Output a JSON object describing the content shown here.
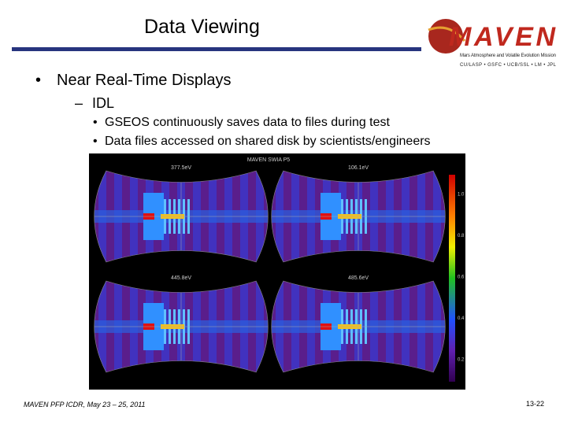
{
  "header": {
    "title": "Data Viewing"
  },
  "logo": {
    "name": "MAVEN",
    "tagline": "Mars Atmosphere and Volatile Evolution Mission",
    "partners": "CU/LASP • GSFC • UCB/SSL • LM • JPL"
  },
  "bullets": [
    {
      "text": "Near Real-Time Displays",
      "sub": [
        {
          "text": "IDL",
          "sub": [
            "GSEOS continuously saves data to files during test",
            "Data files accessed on shared disk by scientists/engineers"
          ]
        }
      ]
    }
  ],
  "figure": {
    "title": "MAVEN SWIA P5",
    "panels": [
      "377.5eV",
      "106.1eV",
      "445.8eV",
      "485.6eV"
    ],
    "colorbar_ticks": [
      "1.0",
      "0.8",
      "0.6",
      "0.4",
      "0.2"
    ]
  },
  "footer": {
    "left": "MAVEN PFP ICDR, May 23 – 25, 2011",
    "page": "13-22"
  }
}
